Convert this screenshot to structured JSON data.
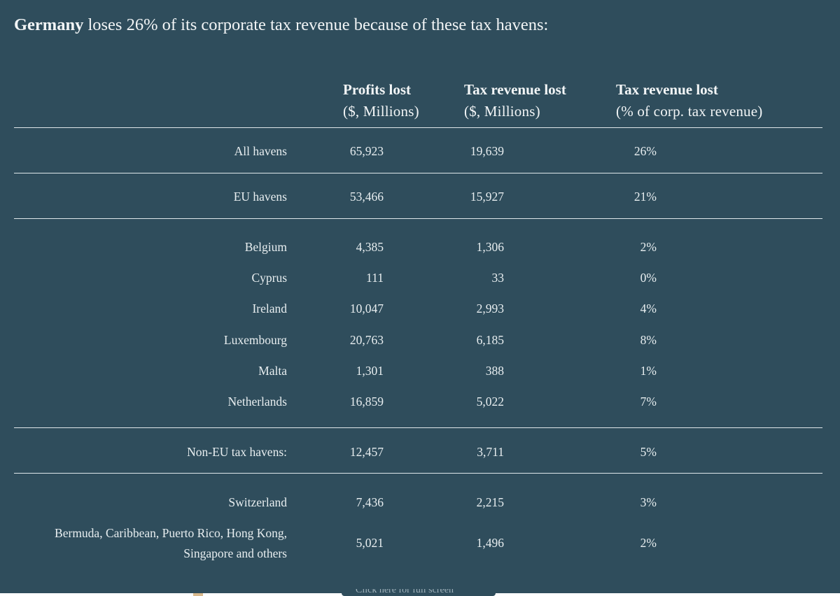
{
  "headline": {
    "country": "Germany",
    "rest": " loses 26% of its corporate tax revenue because of these tax havens:"
  },
  "columns": [
    {
      "title": "Profits lost",
      "subtitle": "($, Millions)"
    },
    {
      "title": "Tax revenue lost",
      "subtitle": "($, Millions)"
    },
    {
      "title": "Tax revenue lost",
      "subtitle": "(% of corp. tax revenue)"
    }
  ],
  "rows": [
    {
      "label": "All havens",
      "profits": "65,923",
      "tax": "19,639",
      "pct": "26%"
    },
    {
      "label": "EU havens",
      "profits": "53,466",
      "tax": "15,927",
      "pct": "21%"
    },
    {
      "label": "Belgium",
      "profits": "4,385",
      "tax": "1,306",
      "pct": "2%"
    },
    {
      "label": "Cyprus",
      "profits": "111",
      "tax": "33",
      "pct": "0%"
    },
    {
      "label": "Ireland",
      "profits": "10,047",
      "tax": "2,993",
      "pct": "4%"
    },
    {
      "label": "Luxembourg",
      "profits": "20,763",
      "tax": "6,185",
      "pct": "8%"
    },
    {
      "label": "Malta",
      "profits": "1,301",
      "tax": "388",
      "pct": "1%"
    },
    {
      "label": "Netherlands",
      "profits": "16,859",
      "tax": "5,022",
      "pct": "7%"
    },
    {
      "label": "Non-EU tax havens:",
      "profits": "12,457",
      "tax": "3,711",
      "pct": "5%"
    },
    {
      "label": "Switzerland",
      "profits": "7,436",
      "tax": "2,215",
      "pct": "3%"
    },
    {
      "label_line1": "Bermuda, Caribbean, Puerto Rico, Hong Kong,",
      "label_line2": "Singapore and others",
      "profits": "5,021",
      "tax": "1,496",
      "pct": "2%"
    }
  ],
  "footer": {
    "button_label": "Click here for full screen"
  },
  "colors": {
    "panel_background": "#2f4d5c",
    "text": "#e8eef0",
    "rule": "#dfe7ea"
  }
}
